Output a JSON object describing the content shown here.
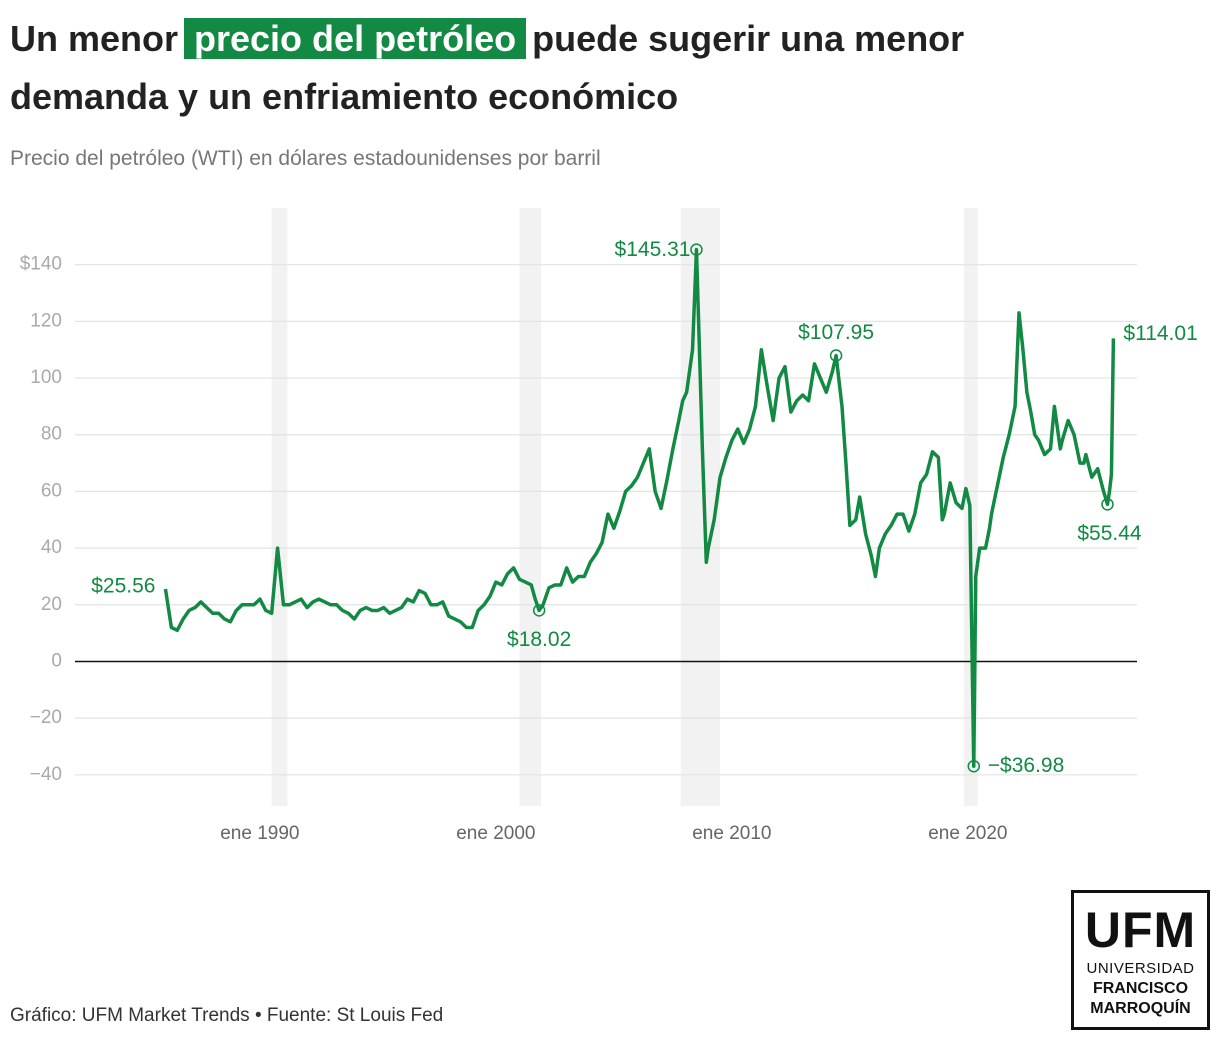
{
  "chart_data": {
    "type": "line",
    "title": {
      "line1_start": "Un menor",
      "highlight": "precio del petróleo",
      "line1_end": "puede sugerir una menor",
      "line2": "demanda y un enfriamiento económico"
    },
    "subtitle": "Precio del petróleo (WTI) en dólares estadounidenses por barril",
    "source": "Gráfico: UFM Market Trends • Fuente: St Louis Fed",
    "color": "#128a43",
    "recession_color": "#f2f2f2",
    "grid": true,
    "xlim": [
      "1982-03",
      "2027-03"
    ],
    "xticks": [
      {
        "value": "1990-01",
        "label": "ene 1990"
      },
      {
        "value": "2000-01",
        "label": "ene 2000"
      },
      {
        "value": "2010-01",
        "label": "ene 2010"
      },
      {
        "value": "2020-01",
        "label": "ene 2020"
      }
    ],
    "ylim": [
      -51,
      160
    ],
    "yticks": [
      {
        "value": -40,
        "label": "−40"
      },
      {
        "value": -20,
        "label": "−20"
      },
      0,
      20,
      40,
      60,
      80,
      100,
      120,
      {
        "value": 140,
        "label": "$140"
      }
    ],
    "recessions": [
      [
        "1990-07",
        "1991-03"
      ],
      [
        "2001-01",
        "2001-12"
      ],
      [
        "2007-11",
        "2009-07"
      ],
      [
        "2019-11",
        "2020-06"
      ]
    ],
    "x": [
      "1986-01",
      "1986-04",
      "1986-07",
      "1986-10",
      "1987-01",
      "1987-04",
      "1987-07",
      "1987-10",
      "1988-01",
      "1988-04",
      "1988-07",
      "1988-10",
      "1989-01",
      "1989-04",
      "1989-07",
      "1989-10",
      "1990-01",
      "1990-04",
      "1990-07",
      "1990-10",
      "1991-01",
      "1991-04",
      "1991-07",
      "1991-10",
      "1992-01",
      "1992-04",
      "1992-07",
      "1992-10",
      "1993-01",
      "1993-04",
      "1993-07",
      "1993-10",
      "1994-01",
      "1994-04",
      "1994-07",
      "1994-10",
      "1995-01",
      "1995-04",
      "1995-07",
      "1995-10",
      "1996-01",
      "1996-04",
      "1996-07",
      "1996-10",
      "1997-01",
      "1997-04",
      "1997-07",
      "1997-10",
      "1998-01",
      "1998-04",
      "1998-07",
      "1998-10",
      "1999-01",
      "1999-04",
      "1999-07",
      "1999-10",
      "2000-01",
      "2000-04",
      "2000-07",
      "2000-10",
      "2001-01",
      "2001-04",
      "2001-07",
      "2001-09",
      "2001-11",
      "2002-01",
      "2002-04",
      "2002-07",
      "2002-10",
      "2003-01",
      "2003-04",
      "2003-07",
      "2003-10",
      "2004-01",
      "2004-04",
      "2004-07",
      "2004-10",
      "2005-01",
      "2005-04",
      "2005-07",
      "2005-10",
      "2006-01",
      "2006-04",
      "2006-07",
      "2006-10",
      "2007-01",
      "2007-04",
      "2007-07",
      "2007-10",
      "2007-12",
      "2008-02",
      "2008-05",
      "2008-07",
      "2008-10",
      "2008-12",
      "2009-01",
      "2009-04",
      "2009-07",
      "2009-10",
      "2010-01",
      "2010-04",
      "2010-07",
      "2010-10",
      "2011-01",
      "2011-04",
      "2011-07",
      "2011-10",
      "2012-01",
      "2012-04",
      "2012-07",
      "2012-10",
      "2013-01",
      "2013-04",
      "2013-07",
      "2013-10",
      "2014-01",
      "2014-04",
      "2014-06",
      "2014-09",
      "2014-11",
      "2015-01",
      "2015-04",
      "2015-06",
      "2015-09",
      "2015-12",
      "2016-02",
      "2016-04",
      "2016-07",
      "2016-10",
      "2017-01",
      "2017-04",
      "2017-07",
      "2017-10",
      "2018-01",
      "2018-04",
      "2018-07",
      "2018-10",
      "2018-12",
      "2019-01",
      "2019-04",
      "2019-07",
      "2019-10",
      "2019-12",
      "2020-02",
      "2020-04",
      "2020-05",
      "2020-07",
      "2020-10",
      "2020-12",
      "2021-01",
      "2021-04",
      "2021-07",
      "2021-10",
      "2022-01",
      "2022-03",
      "2022-05",
      "2022-07",
      "2022-09",
      "2022-11",
      "2023-01",
      "2023-04",
      "2023-07",
      "2023-09",
      "2023-12",
      "2024-01",
      "2024-04",
      "2024-07",
      "2024-10",
      "2024-12",
      "2025-01",
      "2025-04",
      "2025-07",
      "2025-10",
      "2025-12",
      "2026-01",
      "2026-02",
      "2026-03"
    ],
    "series": [
      {
        "name": "WTI",
        "values": [
          25.56,
          12,
          11,
          15,
          18,
          19,
          21,
          19,
          17,
          17,
          15,
          14,
          18,
          20,
          20,
          20,
          22,
          18,
          17,
          40,
          20,
          20,
          21,
          22,
          19,
          21,
          22,
          21,
          20,
          20,
          18,
          17,
          15,
          18,
          19,
          18,
          18,
          19,
          17,
          18,
          19,
          22,
          21,
          25,
          24,
          20,
          20,
          21,
          16,
          15,
          14,
          12,
          12,
          18,
          20,
          23,
          28,
          27,
          31,
          33,
          29,
          28,
          27,
          22,
          18.02,
          20,
          26,
          27,
          27,
          33,
          28,
          30,
          30,
          35,
          38,
          42,
          52,
          47,
          53,
          60,
          62,
          65,
          70,
          75,
          60,
          54,
          64,
          75,
          85,
          92,
          95,
          110,
          145.31,
          75,
          35,
          40,
          50,
          65,
          72,
          78,
          82,
          77,
          82,
          90,
          110,
          97,
          85,
          100,
          104,
          88,
          92,
          94,
          92,
          105,
          100,
          95,
          102,
          107.95,
          90,
          70,
          48,
          50,
          58,
          45,
          37,
          30,
          40,
          45,
          48,
          52,
          52,
          46,
          52,
          63,
          66,
          74,
          72,
          50,
          52,
          63,
          56,
          54,
          61,
          55,
          -36.98,
          30,
          40,
          40,
          47,
          52,
          62,
          72,
          80,
          90,
          123,
          110,
          95,
          88,
          80,
          78,
          73,
          75,
          90,
          75,
          78,
          85,
          80,
          70,
          70,
          73,
          65,
          68,
          60,
          55.44,
          60,
          66,
          114.01
        ]
      }
    ],
    "annotations": [
      {
        "x": "1986-01",
        "value": 25.56,
        "label": "$25.56",
        "circle": false
      },
      {
        "x": "2001-11",
        "value": 18.02,
        "label": "$18.02",
        "circle": true
      },
      {
        "x": "2008-07",
        "value": 145.31,
        "label": "$145.31",
        "circle": true
      },
      {
        "x": "2014-06",
        "value": 107.95,
        "label": "$107.95",
        "circle": true
      },
      {
        "x": "2020-04",
        "value": -36.98,
        "label": "−$36.98",
        "circle": true
      },
      {
        "x": "2025-12",
        "value": 55.44,
        "label": "$55.44",
        "circle": true
      },
      {
        "x": "2026-03",
        "value": 114.01,
        "label": "$114.01",
        "circle": false
      }
    ]
  },
  "logo": {
    "mark": "UFM",
    "line1": "UNIVERSIDAD",
    "line2": "FRANCISCO",
    "line3": "MARROQUÍN"
  }
}
